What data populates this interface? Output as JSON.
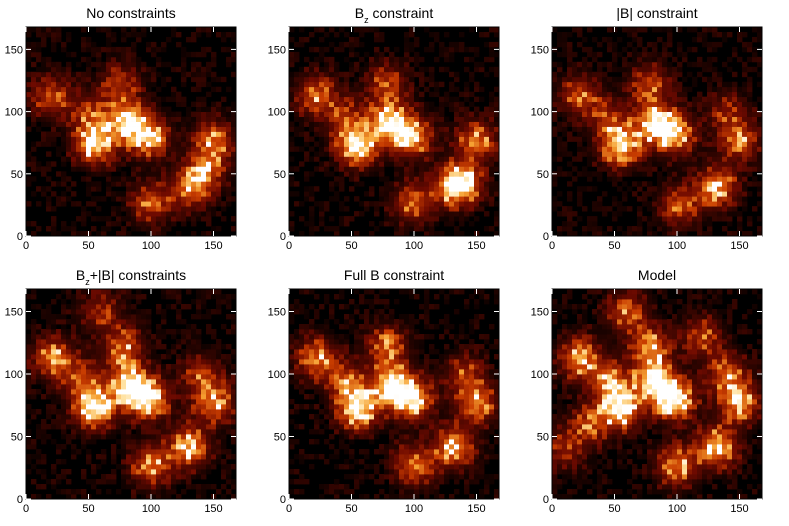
{
  "chart_data": [
    {
      "type": "heatmap",
      "title": "No constraints",
      "title_main": "No constraints",
      "title_sub": "",
      "title_rest": "",
      "xlim": [
        0,
        168
      ],
      "ylim": [
        0,
        168
      ],
      "x_ticks": [
        0,
        50,
        100,
        150
      ],
      "y_ticks": [
        0,
        50,
        100,
        150
      ],
      "colormap": "black-red-yellow-white",
      "hotspots": [
        {
          "x": 55,
          "y": 75,
          "v": 0.95
        },
        {
          "x": 80,
          "y": 93,
          "v": 0.85
        },
        {
          "x": 98,
          "y": 80,
          "v": 0.8
        },
        {
          "x": 132,
          "y": 40,
          "v": 0.7
        },
        {
          "x": 150,
          "y": 77,
          "v": 0.6
        },
        {
          "x": 20,
          "y": 112,
          "v": 0.55
        },
        {
          "x": 100,
          "y": 27,
          "v": 0.55
        },
        {
          "x": 145,
          "y": 55,
          "v": 0.5
        },
        {
          "x": 75,
          "y": 122,
          "v": 0.45
        },
        {
          "x": 50,
          "y": 100,
          "v": 0.4
        }
      ]
    },
    {
      "type": "heatmap",
      "title": "Bz constraint",
      "title_main": "B",
      "title_sub": "z",
      "title_rest": " constraint",
      "xlim": [
        0,
        168
      ],
      "ylim": [
        0,
        168
      ],
      "x_ticks": [
        0,
        50,
        100,
        150
      ],
      "y_ticks": [
        0,
        50,
        100,
        150
      ],
      "colormap": "black-red-yellow-white",
      "hotspots": [
        {
          "x": 55,
          "y": 73,
          "v": 1.0
        },
        {
          "x": 80,
          "y": 92,
          "v": 0.9
        },
        {
          "x": 98,
          "y": 80,
          "v": 0.85
        },
        {
          "x": 132,
          "y": 40,
          "v": 0.75
        },
        {
          "x": 150,
          "y": 77,
          "v": 0.65
        },
        {
          "x": 22,
          "y": 113,
          "v": 0.6
        },
        {
          "x": 100,
          "y": 27,
          "v": 0.6
        },
        {
          "x": 140,
          "y": 45,
          "v": 0.55
        },
        {
          "x": 78,
          "y": 122,
          "v": 0.5
        },
        {
          "x": 45,
          "y": 95,
          "v": 0.45
        }
      ]
    },
    {
      "type": "heatmap",
      "title": "|B| constraint",
      "title_main": "|B| constraint",
      "title_sub": "",
      "title_rest": "",
      "xlim": [
        0,
        168
      ],
      "ylim": [
        0,
        168
      ],
      "x_ticks": [
        0,
        50,
        100,
        150
      ],
      "y_ticks": [
        0,
        50,
        100,
        150
      ],
      "colormap": "black-red-yellow-white",
      "hotspots": [
        {
          "x": 55,
          "y": 73,
          "v": 0.95
        },
        {
          "x": 82,
          "y": 92,
          "v": 0.85
        },
        {
          "x": 98,
          "y": 82,
          "v": 0.8
        },
        {
          "x": 132,
          "y": 40,
          "v": 0.75
        },
        {
          "x": 150,
          "y": 77,
          "v": 0.6
        },
        {
          "x": 22,
          "y": 113,
          "v": 0.55
        },
        {
          "x": 102,
          "y": 25,
          "v": 0.55
        },
        {
          "x": 78,
          "y": 122,
          "v": 0.5
        },
        {
          "x": 45,
          "y": 95,
          "v": 0.4
        },
        {
          "x": 140,
          "y": 100,
          "v": 0.35
        }
      ]
    },
    {
      "type": "heatmap",
      "title": "Bz+|B| constraints",
      "title_main": "B",
      "title_sub": "z",
      "title_rest": "+|B| constraints",
      "xlim": [
        0,
        168
      ],
      "ylim": [
        0,
        168
      ],
      "x_ticks": [
        0,
        50,
        100,
        150
      ],
      "y_ticks": [
        0,
        50,
        100,
        150
      ],
      "colormap": "black-red-yellow-white",
      "hotspots": [
        {
          "x": 55,
          "y": 73,
          "v": 1.0
        },
        {
          "x": 82,
          "y": 92,
          "v": 0.95
        },
        {
          "x": 98,
          "y": 80,
          "v": 0.9
        },
        {
          "x": 130,
          "y": 42,
          "v": 0.8
        },
        {
          "x": 150,
          "y": 77,
          "v": 0.7
        },
        {
          "x": 22,
          "y": 113,
          "v": 0.7
        },
        {
          "x": 100,
          "y": 27,
          "v": 0.65
        },
        {
          "x": 78,
          "y": 122,
          "v": 0.6
        },
        {
          "x": 45,
          "y": 95,
          "v": 0.5
        },
        {
          "x": 140,
          "y": 100,
          "v": 0.45
        },
        {
          "x": 60,
          "y": 150,
          "v": 0.4
        }
      ]
    },
    {
      "type": "heatmap",
      "title": "Full B constraint",
      "title_main": "Full B constraint",
      "title_sub": "",
      "title_rest": "",
      "xlim": [
        0,
        168
      ],
      "ylim": [
        0,
        168
      ],
      "x_ticks": [
        0,
        50,
        100,
        150
      ],
      "y_ticks": [
        0,
        50,
        100,
        150
      ],
      "colormap": "black-red-yellow-white",
      "hotspots": [
        {
          "x": 55,
          "y": 73,
          "v": 1.0
        },
        {
          "x": 82,
          "y": 92,
          "v": 0.95
        },
        {
          "x": 98,
          "y": 80,
          "v": 0.9
        },
        {
          "x": 132,
          "y": 42,
          "v": 0.8
        },
        {
          "x": 150,
          "y": 77,
          "v": 0.7
        },
        {
          "x": 22,
          "y": 113,
          "v": 0.65
        },
        {
          "x": 100,
          "y": 27,
          "v": 0.65
        },
        {
          "x": 78,
          "y": 122,
          "v": 0.6
        },
        {
          "x": 45,
          "y": 95,
          "v": 0.5
        },
        {
          "x": 140,
          "y": 100,
          "v": 0.45
        }
      ]
    },
    {
      "type": "heatmap",
      "title": "Model",
      "title_main": "Model",
      "title_sub": "",
      "title_rest": "",
      "xlim": [
        0,
        168
      ],
      "ylim": [
        0,
        168
      ],
      "x_ticks": [
        0,
        50,
        100,
        150
      ],
      "y_ticks": [
        0,
        50,
        100,
        150
      ],
      "colormap": "black-red-yellow-white",
      "hotspots": [
        {
          "x": 55,
          "y": 73,
          "v": 1.0
        },
        {
          "x": 82,
          "y": 95,
          "v": 1.0
        },
        {
          "x": 98,
          "y": 80,
          "v": 1.0
        },
        {
          "x": 132,
          "y": 42,
          "v": 0.85
        },
        {
          "x": 150,
          "y": 77,
          "v": 0.75
        },
        {
          "x": 22,
          "y": 113,
          "v": 0.75
        },
        {
          "x": 100,
          "y": 27,
          "v": 0.7
        },
        {
          "x": 78,
          "y": 122,
          "v": 0.7
        },
        {
          "x": 45,
          "y": 95,
          "v": 0.65
        },
        {
          "x": 140,
          "y": 100,
          "v": 0.6
        },
        {
          "x": 60,
          "y": 150,
          "v": 0.55
        },
        {
          "x": 30,
          "y": 60,
          "v": 0.5
        },
        {
          "x": 120,
          "y": 130,
          "v": 0.5
        },
        {
          "x": 10,
          "y": 40,
          "v": 0.4
        }
      ]
    }
  ]
}
